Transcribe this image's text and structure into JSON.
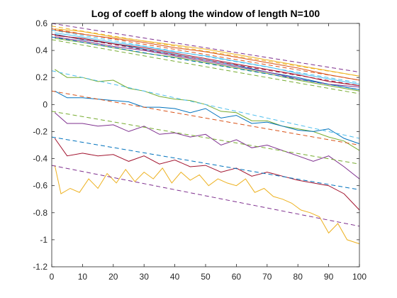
{
  "chart_data": {
    "type": "line",
    "title": "Log of coeff b along the window of length N=100",
    "xlabel": "",
    "ylabel": "",
    "xlim": [
      0,
      100
    ],
    "ylim": [
      -1.2,
      0.6
    ],
    "xticks": [
      0,
      10,
      20,
      30,
      40,
      50,
      60,
      70,
      80,
      90,
      100
    ],
    "yticks": [
      -1.2,
      -1,
      -0.8,
      -0.6,
      -0.4,
      -0.2,
      0,
      0.2,
      0.4,
      0.6
    ],
    "grid": false,
    "colors": [
      "#0072BD",
      "#D95319",
      "#EDB120",
      "#7E2F8E",
      "#77AC30",
      "#4DBEEE",
      "#A2142F"
    ],
    "series": [
      {
        "style": "solid",
        "color": "#0072BD",
        "x": [
          1,
          10,
          20,
          30,
          40,
          50,
          60,
          70,
          80,
          90,
          100
        ],
        "y": [
          0.52,
          0.48,
          0.45,
          0.41,
          0.37,
          0.33,
          0.29,
          0.24,
          0.2,
          0.15,
          0.11
        ]
      },
      {
        "style": "solid",
        "color": "#D95319",
        "x": [
          1,
          10,
          20,
          30,
          40,
          50,
          60,
          70,
          80,
          90,
          100
        ],
        "y": [
          0.55,
          0.52,
          0.49,
          0.46,
          0.42,
          0.39,
          0.35,
          0.31,
          0.27,
          0.22,
          0.18
        ]
      },
      {
        "style": "solid",
        "color": "#EDB120",
        "x": [
          1,
          10,
          20,
          30,
          40,
          50,
          60,
          70,
          80,
          90,
          100
        ],
        "y": [
          0.56,
          0.54,
          0.5,
          0.47,
          0.44,
          0.41,
          0.37,
          0.33,
          0.29,
          0.25,
          0.21
        ]
      },
      {
        "style": "solid",
        "color": "#7E2F8E",
        "x": [
          1,
          10,
          20,
          30,
          40,
          50,
          60,
          70,
          80,
          90,
          100
        ],
        "y": [
          0.5,
          0.47,
          0.43,
          0.4,
          0.36,
          0.32,
          0.28,
          0.24,
          0.19,
          0.15,
          0.13
        ]
      },
      {
        "style": "solid",
        "color": "#77AC30",
        "x": [
          1,
          10,
          20,
          30,
          40,
          50,
          60,
          70,
          80,
          90,
          100
        ],
        "y": [
          0.49,
          0.46,
          0.42,
          0.38,
          0.35,
          0.31,
          0.27,
          0.23,
          0.18,
          0.14,
          0.1
        ]
      },
      {
        "style": "solid",
        "color": "#4DBEEE",
        "x": [
          1,
          10,
          20,
          30,
          40,
          50,
          60,
          70,
          80,
          90,
          100
        ],
        "y": [
          0.53,
          0.5,
          0.46,
          0.43,
          0.39,
          0.36,
          0.32,
          0.28,
          0.23,
          0.19,
          0.15
        ]
      },
      {
        "style": "solid",
        "color": "#A2142F",
        "x": [
          1,
          10,
          20,
          30,
          40,
          50,
          60,
          70,
          80,
          90,
          100
        ],
        "y": [
          0.51,
          0.49,
          0.45,
          0.42,
          0.38,
          0.34,
          0.3,
          0.26,
          0.22,
          0.17,
          0.14
        ]
      },
      {
        "style": "solid",
        "color": "#77AC30",
        "x": [
          1,
          5,
          10,
          15,
          20,
          25,
          30,
          35,
          40,
          45,
          50,
          55,
          60,
          65,
          70,
          75,
          80,
          85,
          90,
          95,
          100
        ],
        "y": [
          0.26,
          0.2,
          0.2,
          0.17,
          0.18,
          0.12,
          0.1,
          0.06,
          0.04,
          0.03,
          0.0,
          -0.05,
          -0.06,
          -0.12,
          -0.12,
          -0.16,
          -0.18,
          -0.2,
          -0.24,
          -0.27,
          -0.34
        ]
      },
      {
        "style": "solid",
        "color": "#0072BD",
        "x": [
          1,
          5,
          10,
          15,
          20,
          25,
          30,
          35,
          40,
          45,
          50,
          55,
          60,
          65,
          70,
          75,
          80,
          85,
          90,
          95,
          100
        ],
        "y": [
          0.1,
          0.05,
          0.05,
          0.04,
          0.03,
          0.02,
          -0.02,
          -0.02,
          -0.03,
          -0.06,
          -0.03,
          -0.1,
          -0.08,
          -0.14,
          -0.13,
          -0.16,
          -0.19,
          -0.2,
          -0.18,
          -0.25,
          -0.29
        ]
      },
      {
        "style": "solid",
        "color": "#7E2F8E",
        "x": [
          1,
          5,
          10,
          15,
          20,
          25,
          30,
          35,
          40,
          45,
          50,
          55,
          60,
          65,
          70,
          75,
          80,
          85,
          90,
          95,
          100
        ],
        "y": [
          -0.06,
          -0.14,
          -0.14,
          -0.16,
          -0.15,
          -0.2,
          -0.16,
          -0.22,
          -0.21,
          -0.24,
          -0.22,
          -0.3,
          -0.26,
          -0.32,
          -0.3,
          -0.34,
          -0.38,
          -0.42,
          -0.38,
          -0.46,
          -0.55
        ]
      },
      {
        "style": "solid",
        "color": "#A2142F",
        "x": [
          1,
          5,
          10,
          15,
          20,
          25,
          30,
          35,
          40,
          45,
          50,
          55,
          60,
          65,
          70,
          75,
          80,
          85,
          90,
          95,
          100
        ],
        "y": [
          -0.25,
          -0.38,
          -0.36,
          -0.38,
          -0.37,
          -0.42,
          -0.38,
          -0.44,
          -0.41,
          -0.46,
          -0.45,
          -0.5,
          -0.47,
          -0.53,
          -0.5,
          -0.53,
          -0.56,
          -0.58,
          -0.6,
          -0.66,
          -0.78
        ]
      },
      {
        "style": "solid",
        "color": "#EDB120",
        "x": [
          1,
          3,
          6,
          9,
          12,
          15,
          18,
          21,
          24,
          27,
          30,
          33,
          36,
          39,
          42,
          45,
          48,
          51,
          54,
          57,
          60,
          63,
          66,
          69,
          72,
          75,
          78,
          81,
          84,
          87,
          90,
          93,
          96,
          100
        ],
        "y": [
          -0.45,
          -0.66,
          -0.62,
          -0.65,
          -0.55,
          -0.62,
          -0.51,
          -0.58,
          -0.48,
          -0.57,
          -0.5,
          -0.55,
          -0.47,
          -0.58,
          -0.5,
          -0.56,
          -0.52,
          -0.6,
          -0.55,
          -0.58,
          -0.6,
          -0.55,
          -0.65,
          -0.62,
          -0.68,
          -0.7,
          -0.73,
          -0.78,
          -0.8,
          -0.83,
          -0.95,
          -0.88,
          -1.0,
          -1.03
        ]
      },
      {
        "style": "dashed",
        "color": "#7E2F8E",
        "x": [
          0,
          100
        ],
        "y": [
          0.6,
          0.24
        ]
      },
      {
        "style": "dashed",
        "color": "#EDB120",
        "x": [
          0,
          100
        ],
        "y": [
          0.58,
          0.21
        ]
      },
      {
        "style": "dashed",
        "color": "#D95319",
        "x": [
          0,
          100
        ],
        "y": [
          0.56,
          0.18
        ]
      },
      {
        "style": "dashed",
        "color": "#4DBEEE",
        "x": [
          0,
          100
        ],
        "y": [
          0.55,
          0.16
        ]
      },
      {
        "style": "dashed",
        "color": "#A2142F",
        "x": [
          0,
          100
        ],
        "y": [
          0.52,
          0.14
        ]
      },
      {
        "style": "dashed",
        "color": "#0072BD",
        "x": [
          0,
          100
        ],
        "y": [
          0.5,
          0.11
        ]
      },
      {
        "style": "dashed",
        "color": "#77AC30",
        "x": [
          0,
          100
        ],
        "y": [
          0.48,
          0.08
        ]
      },
      {
        "style": "dashed",
        "color": "#4DBEEE",
        "x": [
          0,
          100
        ],
        "y": [
          0.25,
          -0.25
        ]
      },
      {
        "style": "dashed",
        "color": "#D95319",
        "x": [
          0,
          100
        ],
        "y": [
          0.1,
          -0.3
        ]
      },
      {
        "style": "dashed",
        "color": "#77AC30",
        "x": [
          0,
          100
        ],
        "y": [
          -0.05,
          -0.44
        ]
      },
      {
        "style": "dashed",
        "color": "#0072BD",
        "x": [
          0,
          100
        ],
        "y": [
          -0.24,
          -0.63
        ]
      },
      {
        "style": "dashed",
        "color": "#7E2F8E",
        "x": [
          0,
          100
        ],
        "y": [
          -0.45,
          -0.9
        ]
      }
    ]
  }
}
